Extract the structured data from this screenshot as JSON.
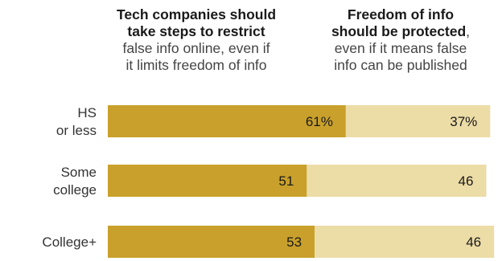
{
  "header_left": {
    "bold": [
      "Tech companies should",
      "take steps to restrict"
    ],
    "regular": [
      "false info online, even if",
      "it limits freedom of info"
    ]
  },
  "header_right": {
    "bold": [
      "Freedom of info",
      "should be protected"
    ],
    "comma": ",",
    "regular": [
      "even if it means false",
      "info can be published"
    ]
  },
  "colors": {
    "left": "#c9a02b",
    "right": "#ecdca6"
  },
  "chart_data": {
    "type": "bar",
    "orientation": "horizontal",
    "stacked": true,
    "categories": [
      [
        "HS",
        "or less"
      ],
      [
        "Some",
        "college"
      ],
      [
        "College+"
      ]
    ],
    "series": [
      {
        "values": [
          61,
          51,
          53
        ],
        "labels": [
          "61%",
          "51",
          "53"
        ]
      },
      {
        "values": [
          37,
          46,
          46
        ],
        "labels": [
          "37%",
          "46",
          "46"
        ]
      }
    ],
    "xlim": [
      0,
      100
    ],
    "grid": false,
    "legend": "none"
  }
}
